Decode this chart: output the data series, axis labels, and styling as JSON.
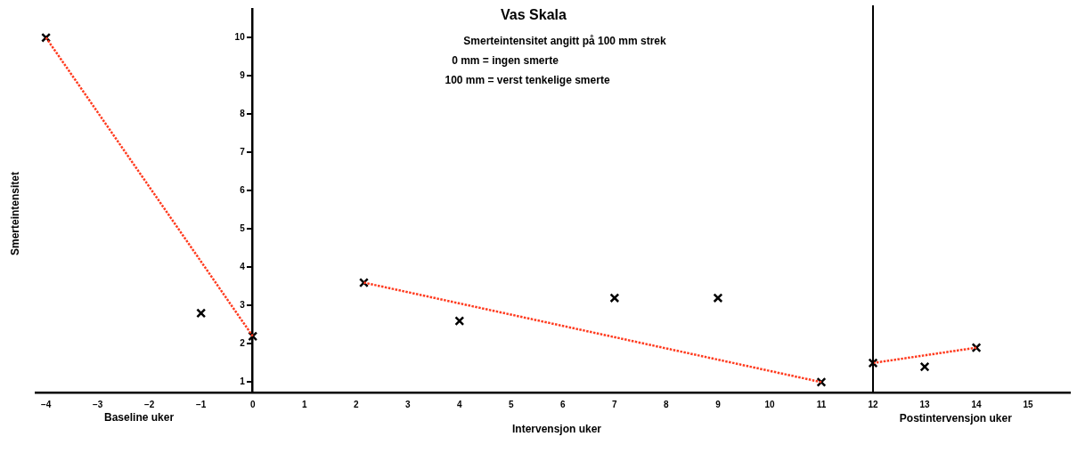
{
  "chart_data": {
    "type": "scatter",
    "title": "Vas Skala",
    "subtitle": "Smerteintensitet angitt på 100 mm strek",
    "xlabel": "Intervensjon uker",
    "ylabel": "Smerteintensitet",
    "annotations": [
      "0 mm = ingen smerte",
      "100 mm = verst tenkelige smerte",
      "Baseline uker",
      "Postintervensjon uker"
    ],
    "x": [
      -4,
      -1,
      0,
      2.15,
      4,
      7,
      9,
      11,
      12,
      13,
      14
    ],
    "series": [
      {
        "color": "#000000",
        "marker": "cross",
        "values": [
          10,
          2.8,
          2.2,
          3.6,
          2.6,
          3.2,
          3.2,
          1.0,
          1.5,
          1.4,
          1.9
        ]
      },
      {
        "type": "line",
        "color": "#ff3b1f",
        "line_style": "dotted",
        "marker": "none",
        "x": [
          -4,
          0
        ],
        "values": [
          10,
          2.2
        ]
      },
      {
        "type": "line",
        "color": "#ff3b1f",
        "line_style": "dotted",
        "marker": "none",
        "x": [
          2.15,
          11
        ],
        "values": [
          3.6,
          1.0
        ]
      },
      {
        "type": "line",
        "color": "#ff3b1f",
        "line_style": "dotted",
        "marker": "none",
        "x": [
          12,
          14
        ],
        "values": [
          1.5,
          1.9
        ]
      }
    ],
    "xlim": [
      -4.2,
      15.8
    ],
    "xticks": [
      -4,
      -3,
      -2,
      -1,
      0,
      1,
      2,
      3,
      4,
      5,
      6,
      7,
      8,
      9,
      10,
      11,
      12,
      13,
      14,
      15
    ],
    "ylim": [
      0.73,
      10.75
    ],
    "yticks": [
      1,
      2,
      3,
      4,
      5,
      6,
      7,
      8,
      9,
      10
    ],
    "ref_lines": [
      {
        "axis": "x",
        "value": 12,
        "color": "#000000",
        "line_style": "solid"
      }
    ],
    "grid": false,
    "legend": false
  }
}
